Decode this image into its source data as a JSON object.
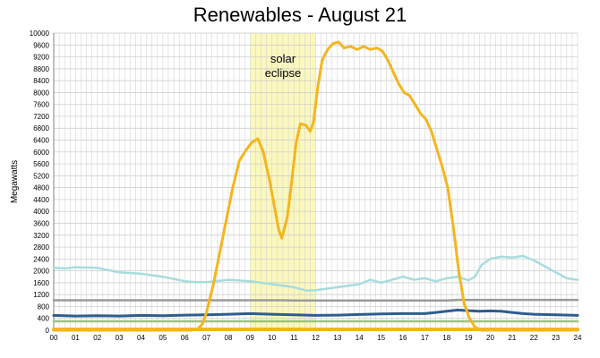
{
  "chart_data": {
    "type": "line",
    "title": "Renewables - August 21",
    "xlabel": "",
    "ylabel": "Megawatts",
    "xlim": [
      0,
      24
    ],
    "ylim": [
      0,
      10000
    ],
    "x_ticks": [
      "00",
      "01",
      "02",
      "03",
      "04",
      "05",
      "06",
      "07",
      "08",
      "09",
      "10",
      "11",
      "12",
      "13",
      "14",
      "15",
      "16",
      "17",
      "18",
      "19",
      "20",
      "21",
      "22",
      "23",
      "24"
    ],
    "y_ticks": [
      0,
      400,
      800,
      1200,
      1600,
      2000,
      2400,
      2800,
      3200,
      3600,
      4000,
      4400,
      4800,
      5200,
      5600,
      6000,
      6400,
      6800,
      7200,
      7600,
      8000,
      8400,
      8800,
      9200,
      9600,
      10000
    ],
    "grid": true,
    "annotations": [
      {
        "text": [
          "solar",
          "eclipse"
        ],
        "x_range": [
          9,
          12
        ]
      }
    ],
    "colors": {
      "highlight": "#fbf8bd",
      "solar": "#f5b51f",
      "wind": "#a8dcdc",
      "geothermal": "#9a9a9a",
      "small_hydro": "#2e5d8e",
      "biomass": "#9dc476",
      "bottom": "#f5b51f"
    },
    "series": [
      {
        "key": "solar",
        "points": [
          [
            0,
            0
          ],
          [
            6.3,
            0
          ],
          [
            6.6,
            50
          ],
          [
            6.8,
            200
          ],
          [
            7,
            600
          ],
          [
            7.3,
            1500
          ],
          [
            7.6,
            2600
          ],
          [
            7.9,
            3700
          ],
          [
            8.2,
            4800
          ],
          [
            8.5,
            5700
          ],
          [
            8.8,
            6050
          ],
          [
            9.05,
            6300
          ],
          [
            9.35,
            6450
          ],
          [
            9.6,
            6000
          ],
          [
            9.9,
            5000
          ],
          [
            10.1,
            4200
          ],
          [
            10.3,
            3400
          ],
          [
            10.45,
            3100
          ],
          [
            10.7,
            3800
          ],
          [
            10.9,
            5000
          ],
          [
            11.1,
            6300
          ],
          [
            11.3,
            6950
          ],
          [
            11.55,
            6900
          ],
          [
            11.75,
            6700
          ],
          [
            11.9,
            7000
          ],
          [
            12.1,
            8200
          ],
          [
            12.3,
            9100
          ],
          [
            12.55,
            9450
          ],
          [
            12.8,
            9650
          ],
          [
            13.05,
            9700
          ],
          [
            13.3,
            9500
          ],
          [
            13.6,
            9550
          ],
          [
            13.9,
            9450
          ],
          [
            14.2,
            9550
          ],
          [
            14.5,
            9450
          ],
          [
            14.8,
            9500
          ],
          [
            15.05,
            9400
          ],
          [
            15.3,
            9100
          ],
          [
            15.55,
            8700
          ],
          [
            15.8,
            8300
          ],
          [
            16.05,
            8000
          ],
          [
            16.3,
            7900
          ],
          [
            16.55,
            7600
          ],
          [
            16.8,
            7300
          ],
          [
            17.05,
            7100
          ],
          [
            17.3,
            6700
          ],
          [
            17.55,
            6100
          ],
          [
            17.8,
            5500
          ],
          [
            18.05,
            4800
          ],
          [
            18.3,
            3500
          ],
          [
            18.55,
            2000
          ],
          [
            18.8,
            900
          ],
          [
            19.05,
            400
          ],
          [
            19.3,
            100
          ],
          [
            19.6,
            0
          ],
          [
            24,
            0
          ]
        ]
      },
      {
        "key": "wind",
        "points": [
          [
            0,
            2100
          ],
          [
            0.5,
            2080
          ],
          [
            1,
            2120
          ],
          [
            2,
            2100
          ],
          [
            3,
            1950
          ],
          [
            4,
            1900
          ],
          [
            5,
            1800
          ],
          [
            6,
            1650
          ],
          [
            6.5,
            1620
          ],
          [
            7,
            1620
          ],
          [
            8,
            1700
          ],
          [
            9,
            1650
          ],
          [
            10,
            1550
          ],
          [
            11,
            1450
          ],
          [
            11.6,
            1330
          ],
          [
            12,
            1350
          ],
          [
            13,
            1450
          ],
          [
            14,
            1550
          ],
          [
            14.5,
            1700
          ],
          [
            15,
            1600
          ],
          [
            15.5,
            1700
          ],
          [
            16,
            1800
          ],
          [
            16.5,
            1700
          ],
          [
            17,
            1750
          ],
          [
            17.5,
            1650
          ],
          [
            18,
            1750
          ],
          [
            18.5,
            1800
          ],
          [
            19,
            1680
          ],
          [
            19.3,
            1800
          ],
          [
            19.6,
            2200
          ],
          [
            20,
            2400
          ],
          [
            20.5,
            2480
          ],
          [
            21,
            2450
          ],
          [
            21.5,
            2500
          ],
          [
            22,
            2350
          ],
          [
            22.5,
            2150
          ],
          [
            23,
            1950
          ],
          [
            23.5,
            1750
          ],
          [
            24,
            1700
          ]
        ]
      },
      {
        "key": "geothermal",
        "points": [
          [
            0,
            1010
          ],
          [
            10.5,
            1010
          ],
          [
            11,
            1000
          ],
          [
            18,
            1000
          ],
          [
            18.5,
            1020
          ],
          [
            24,
            1020
          ]
        ]
      },
      {
        "key": "small_hydro",
        "points": [
          [
            0,
            500
          ],
          [
            1,
            480
          ],
          [
            2,
            490
          ],
          [
            3,
            480
          ],
          [
            4,
            500
          ],
          [
            5,
            490
          ],
          [
            6,
            510
          ],
          [
            7,
            520
          ],
          [
            8,
            540
          ],
          [
            9,
            560
          ],
          [
            10,
            540
          ],
          [
            11,
            520
          ],
          [
            12,
            500
          ],
          [
            13,
            510
          ],
          [
            14,
            530
          ],
          [
            15,
            550
          ],
          [
            16,
            560
          ],
          [
            17,
            560
          ],
          [
            17.5,
            600
          ],
          [
            18,
            640
          ],
          [
            18.5,
            680
          ],
          [
            19,
            660
          ],
          [
            19.5,
            640
          ],
          [
            20,
            650
          ],
          [
            20.5,
            640
          ],
          [
            21,
            600
          ],
          [
            21.5,
            560
          ],
          [
            22,
            540
          ],
          [
            23,
            520
          ],
          [
            24,
            500
          ]
        ]
      },
      {
        "key": "biomass",
        "points": [
          [
            0,
            300
          ],
          [
            24,
            300
          ]
        ]
      },
      {
        "key": "bottom",
        "points": [
          [
            0,
            30
          ],
          [
            24,
            30
          ]
        ]
      }
    ]
  }
}
